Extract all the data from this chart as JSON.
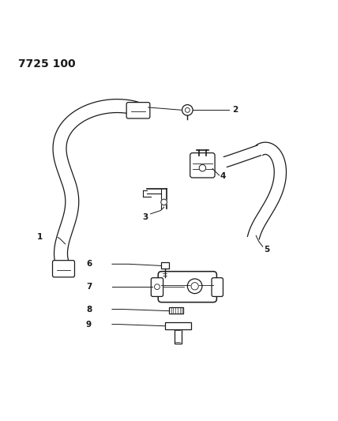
{
  "title_code": "7725 100",
  "background_color": "#ffffff",
  "line_color": "#1a1a1a",
  "label_color": "#1a1a1a",
  "fig_width": 4.28,
  "fig_height": 5.33,
  "dpi": 100
}
